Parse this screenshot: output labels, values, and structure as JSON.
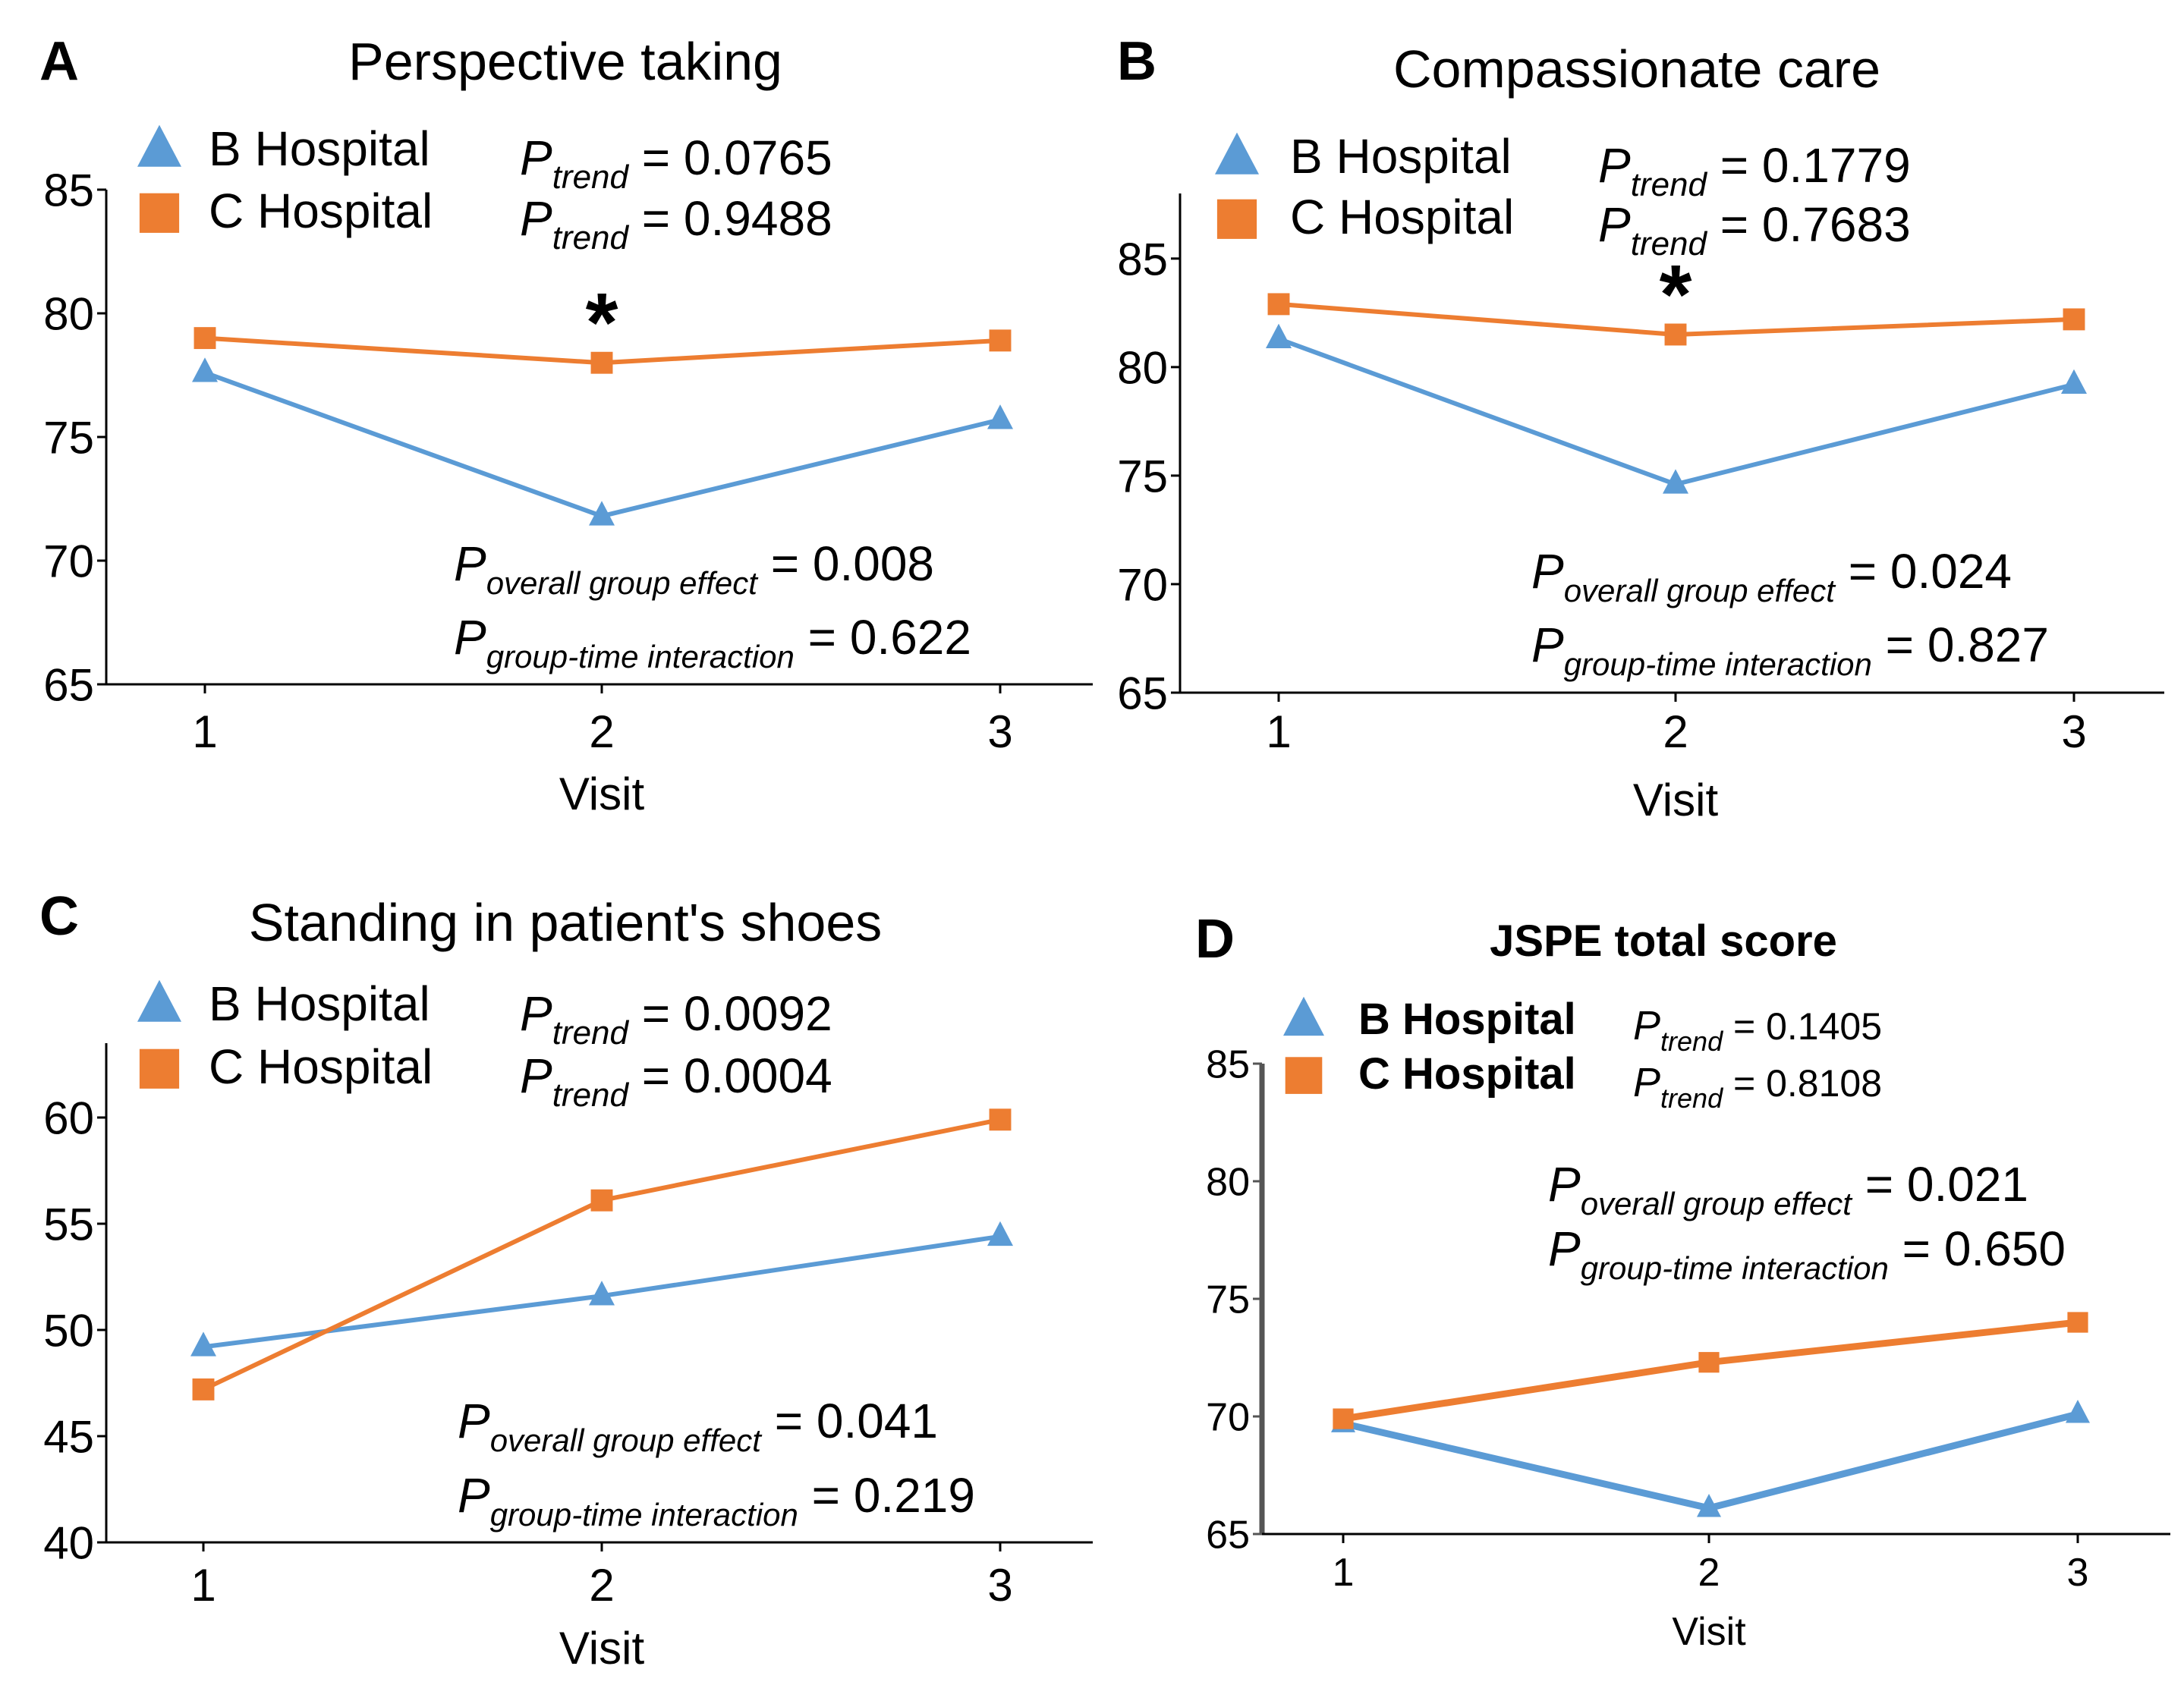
{
  "figure": {
    "colors": {
      "b_hospital": "#5b9bd5",
      "c_hospital": "#ed7d31",
      "axis": "#000000",
      "panel_d_axis": "#555555"
    }
  },
  "chart_data": [
    {
      "panel": "A",
      "type": "line",
      "title": "Perspective taking",
      "xlabel": "Visit",
      "ylabel": "",
      "categories": [
        "1",
        "2",
        "3"
      ],
      "ylim": [
        65,
        85
      ],
      "yticks": [
        "65",
        "70",
        "75",
        "80",
        "85"
      ],
      "series": [
        {
          "name": "B Hospital",
          "marker": "triangle",
          "values": [
            77.6,
            71.8,
            75.7
          ]
        },
        {
          "name": "C Hospital",
          "marker": "square",
          "values": [
            79.0,
            78.0,
            78.9
          ]
        }
      ],
      "trend": [
        {
          "p": "P",
          "sub": "trend",
          "value": "= 0.0765"
        },
        {
          "p": "P",
          "sub": "trend",
          "value": "= 0.9488"
        }
      ],
      "effects": [
        {
          "p": "P",
          "sub": "overall group effect",
          "value": "= 0.008"
        },
        {
          "p": "P",
          "sub": "group-time interaction",
          "value": "= 0.622"
        }
      ],
      "significance": {
        "symbol": "*",
        "category": "2"
      },
      "grid": false
    },
    {
      "panel": "B",
      "type": "line",
      "title": "Compassionate care",
      "xlabel": "Visit",
      "ylabel": "",
      "categories": [
        "1",
        "2",
        "3"
      ],
      "ylim": [
        65,
        88
      ],
      "yticks": [
        "65",
        "70",
        "75",
        "80",
        "85"
      ],
      "series": [
        {
          "name": "B Hospital",
          "marker": "triangle",
          "values": [
            81.3,
            74.6,
            79.2
          ]
        },
        {
          "name": "C Hospital",
          "marker": "square",
          "values": [
            82.9,
            81.5,
            82.2
          ]
        }
      ],
      "trend": [
        {
          "p": "P",
          "sub": "trend",
          "value": "= 0.1779"
        },
        {
          "p": "P",
          "sub": "trend",
          "value": "= 0.7683"
        }
      ],
      "effects": [
        {
          "p": "P",
          "sub": "overall group effect",
          "value": "= 0.024"
        },
        {
          "p": "P",
          "sub": "group-time interaction",
          "value": "= 0.827"
        }
      ],
      "significance": {
        "symbol": "*",
        "category": "2"
      },
      "grid": false
    },
    {
      "panel": "C",
      "type": "line",
      "title": "Standing in patient's shoes",
      "xlabel": "Visit",
      "ylabel": "",
      "categories": [
        "1",
        "2",
        "3"
      ],
      "ylim": [
        40,
        63.5
      ],
      "yticks": [
        "40",
        "45",
        "50",
        "55",
        "60"
      ],
      "series": [
        {
          "name": "B Hospital",
          "marker": "triangle",
          "values": [
            49.2,
            51.6,
            54.4
          ]
        },
        {
          "name": "C Hospital",
          "marker": "square",
          "values": [
            47.2,
            56.1,
            59.9
          ]
        }
      ],
      "trend": [
        {
          "p": "P",
          "sub": "trend",
          "value": "= 0.0092"
        },
        {
          "p": "P",
          "sub": "trend",
          "value": "= 0.0004"
        }
      ],
      "effects": [
        {
          "p": "P",
          "sub": "overall group effect",
          "value": "= 0.041"
        },
        {
          "p": "P",
          "sub": "group-time interaction",
          "value": "= 0.219"
        }
      ],
      "significance": null,
      "grid": false
    },
    {
      "panel": "D",
      "type": "line",
      "title": "JSPE total score",
      "xlabel": "Visit",
      "ylabel": "",
      "categories": [
        "1",
        "2",
        "3"
      ],
      "ylim": [
        65,
        85
      ],
      "yticks": [
        "65",
        "70",
        "75",
        "80",
        "85"
      ],
      "series": [
        {
          "name": "B Hospital",
          "marker": "triangle",
          "values": [
            69.7,
            66.1,
            70.1
          ]
        },
        {
          "name": "C Hospital",
          "marker": "square",
          "values": [
            69.9,
            72.3,
            74.0
          ]
        }
      ],
      "trend": [
        {
          "p": "P",
          "sub": "trend",
          "value": "= 0.1405"
        },
        {
          "p": "P",
          "sub": "trend",
          "value": "= 0.8108"
        }
      ],
      "effects": [
        {
          "p": "P",
          "sub": "overall group effect",
          "value": "= 0.021"
        },
        {
          "p": "P",
          "sub": "group-time interaction",
          "value": "= 0.650"
        }
      ],
      "significance": null,
      "grid": false
    }
  ]
}
